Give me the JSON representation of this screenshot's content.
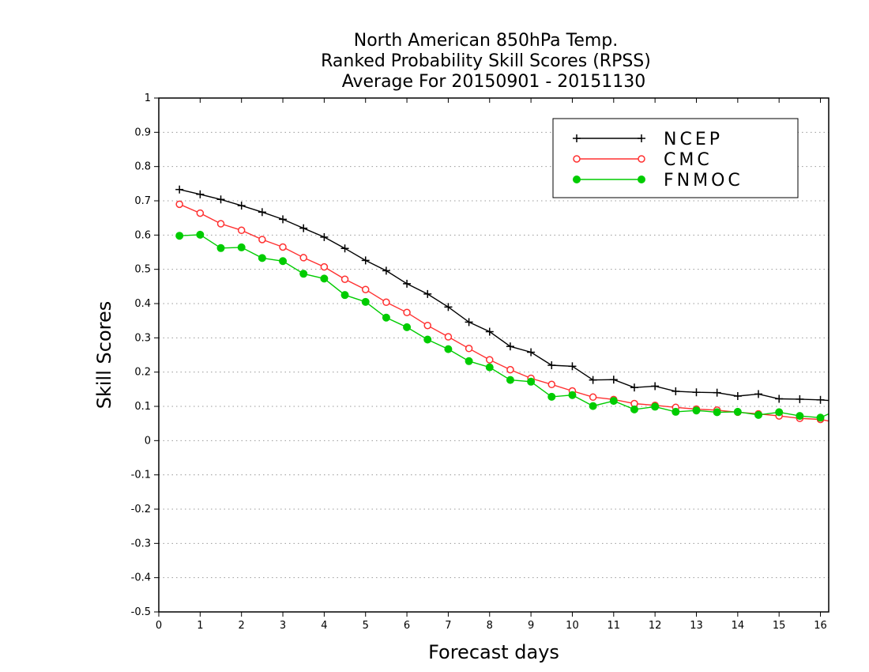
{
  "chart_data": {
    "type": "line",
    "title": [
      "North American 850hPa Temp.",
      "Ranked Probability Skill Scores (RPSS)",
      "Average For 20150901 - 20151130"
    ],
    "xlabel": "Forecast days",
    "ylabel": "Skill Scores",
    "xlim": [
      0,
      16.2
    ],
    "ylim": [
      -0.5,
      1
    ],
    "x_ticks": [
      "0",
      "1",
      "2",
      "3",
      "4",
      "5",
      "6",
      "7",
      "8",
      "9",
      "10",
      "11",
      "12",
      "13",
      "14",
      "15",
      "16"
    ],
    "y_ticks": [
      "1",
      "0.9",
      "0.8",
      "0.7",
      "0.6",
      "0.5",
      "0.4",
      "0.3",
      "0.2",
      "0.1",
      "0",
      "-0.1",
      "-0.2",
      "-0.3",
      "-0.4",
      "-0.5"
    ],
    "grid": "horizontal dotted",
    "legend_position": "top-right",
    "x": [
      0.5,
      1,
      1.5,
      2,
      2.5,
      3,
      3.5,
      4,
      4.5,
      5,
      5.5,
      6,
      6.5,
      7,
      7.5,
      8,
      8.5,
      9,
      9.5,
      10,
      10.5,
      11,
      11.5,
      12,
      12.5,
      13,
      13.5,
      14,
      14.5,
      15,
      15.5,
      16,
      16.2
    ],
    "series": [
      {
        "name": "NCEP",
        "color": "#000000",
        "marker": "plus",
        "values": [
          0.733,
          0.719,
          0.704,
          0.686,
          0.667,
          0.646,
          0.62,
          0.594,
          0.561,
          0.526,
          0.496,
          0.458,
          0.428,
          0.39,
          0.346,
          0.318,
          0.275,
          0.258,
          0.22,
          0.217,
          0.177,
          0.178,
          0.155,
          0.159,
          0.144,
          0.141,
          0.14,
          0.13,
          0.136,
          0.122,
          0.121,
          0.119,
          0.117
        ]
      },
      {
        "name": "CMC",
        "color": "#ff3030",
        "marker": "open-circle",
        "values": [
          0.69,
          0.664,
          0.633,
          0.614,
          0.587,
          0.565,
          0.534,
          0.507,
          0.471,
          0.441,
          0.404,
          0.374,
          0.336,
          0.303,
          0.269,
          0.236,
          0.207,
          0.182,
          0.164,
          0.145,
          0.127,
          0.12,
          0.108,
          0.103,
          0.097,
          0.092,
          0.089,
          0.083,
          0.078,
          0.072,
          0.065,
          0.062,
          0.057
        ]
      },
      {
        "name": "FNMOC",
        "color": "#00cc00",
        "marker": "filled-circle",
        "values": [
          0.598,
          0.601,
          0.562,
          0.564,
          0.533,
          0.524,
          0.487,
          0.473,
          0.425,
          0.405,
          0.359,
          0.331,
          0.295,
          0.267,
          0.232,
          0.214,
          0.177,
          0.172,
          0.128,
          0.133,
          0.101,
          0.116,
          0.091,
          0.099,
          0.084,
          0.088,
          0.083,
          0.084,
          0.075,
          0.083,
          0.072,
          0.067,
          0.078
        ]
      }
    ]
  }
}
